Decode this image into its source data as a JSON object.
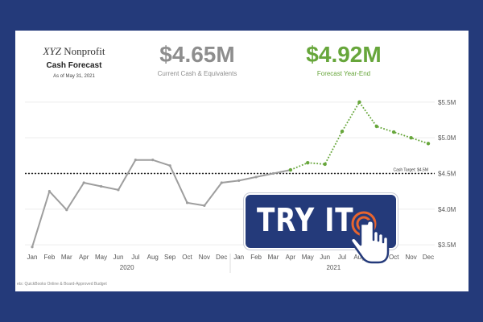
{
  "brand": {
    "xyz": "XYZ",
    "name": "Nonprofit",
    "title": "Cash Forecast",
    "as_of": "As of May 31, 2021"
  },
  "kpis": [
    {
      "value": "$4.65M",
      "label": "Current Cash & Equivalents",
      "color": "#8e8e8e"
    },
    {
      "value": "$4.92M",
      "label": "Forecast Year-End",
      "color": "#67a63b"
    }
  ],
  "cta": {
    "label": "TRY IT",
    "icon": "tap-hand-icon",
    "color": "#243a7a",
    "accent": "#e8652f"
  },
  "footnote": "ets: QuickBooks Online & Board-Approved Budget",
  "colors": {
    "background": "#243a7a",
    "actual": "#9e9e9e",
    "forecast": "#67a63b",
    "target": "#222222"
  },
  "chart_data": {
    "type": "line",
    "x": [
      "Jan",
      "Feb",
      "Mar",
      "Apr",
      "May",
      "Jun",
      "Jul",
      "Aug",
      "Sep",
      "Oct",
      "Nov",
      "Dec",
      "Jan",
      "Feb",
      "Mar",
      "Apr",
      "May",
      "Jun",
      "Jul",
      "Aug",
      "Sep",
      "Oct",
      "Nov",
      "Dec"
    ],
    "year_groups": [
      {
        "label": "2020",
        "start": 0,
        "end": 11
      },
      {
        "label": "2021",
        "start": 12,
        "end": 23
      }
    ],
    "series": [
      {
        "style": "solid",
        "color": "#9e9e9e",
        "points": [
          [
            0,
            3.47
          ],
          [
            1,
            4.25
          ],
          [
            2,
            3.99
          ],
          [
            3,
            4.37
          ],
          [
            4,
            4.32
          ],
          [
            5,
            4.27
          ],
          [
            6,
            4.69
          ],
          [
            7,
            4.69
          ],
          [
            8,
            4.61
          ],
          [
            9,
            4.09
          ],
          [
            10,
            4.05
          ],
          [
            11,
            4.37
          ],
          [
            12,
            4.4
          ],
          [
            13,
            4.45
          ],
          [
            14,
            4.5
          ],
          [
            15,
            4.55
          ]
        ]
      },
      {
        "style": "dotted",
        "color": "#67a63b",
        "points": [
          [
            15,
            4.55
          ],
          [
            16,
            4.65
          ],
          [
            17,
            4.63
          ],
          [
            18,
            5.09
          ],
          [
            19,
            5.5
          ],
          [
            20,
            5.16
          ],
          [
            21,
            5.08
          ],
          [
            22,
            5.0
          ],
          [
            23,
            4.92
          ]
        ]
      }
    ],
    "reference_line": {
      "value": 4.5,
      "label": "Cash Target: $4.5M"
    },
    "ylim": [
      3.4,
      5.6
    ],
    "yticks": [
      3.5,
      4.0,
      4.5,
      5.0,
      5.5
    ],
    "ytick_labels": [
      "$3.5M",
      "$4.0M",
      "$4.5M",
      "$5.0M",
      "$5.5M"
    ],
    "grid": true,
    "xlabel": "",
    "ylabel": ""
  }
}
